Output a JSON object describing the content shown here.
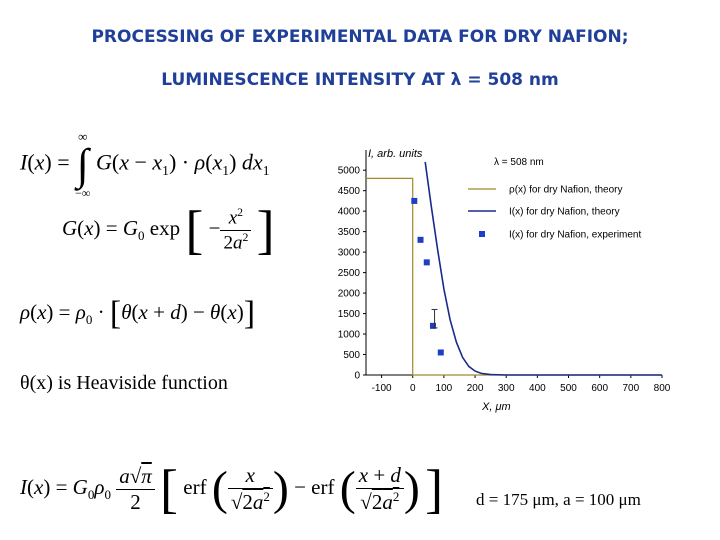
{
  "title_line1": "PROCESSING OF EXPERIMENTAL DATA FOR DRY NAFION;",
  "title_line2": "LUMINESCENCE INTENSITY AT λ = 508 nm",
  "heaviside_note": "θ(x) is Heaviside function",
  "params_note": "d = 175 μm, a = 100 μm",
  "colors": {
    "title": "#1f3f99",
    "theory_rho": "#a08a2a",
    "theory_I": "#1a2a8a",
    "experiment": "#1e3ec8"
  },
  "chart_data": {
    "type": "line",
    "ylabel": "I, arb. units",
    "xlabel": "X, μm",
    "annotation": "λ = 508 nm",
    "xlim": [
      -150,
      800
    ],
    "ylim": [
      0,
      5200
    ],
    "x_ticks": [
      "-100",
      "0",
      "100",
      "200",
      "300",
      "400",
      "500",
      "600",
      "700",
      "800"
    ],
    "y_ticks": [
      "0",
      "500",
      "1000",
      "1500",
      "2000",
      "2500",
      "3000",
      "3500",
      "4000",
      "4500",
      "5000"
    ],
    "legend": [
      "ρ(x) for dry Nafion, theory",
      "I(x) for dry Nafion, theory",
      "I(x) for dry Nafion, experiment"
    ],
    "series": [
      {
        "name": "ρ(x) for dry Nafion, theory",
        "style": "line",
        "x": [
          -150,
          0,
          0,
          800
        ],
        "y": [
          4800,
          4800,
          0,
          0
        ]
      },
      {
        "name": "I(x) for dry Nafion, theory",
        "style": "line",
        "x": [
          40,
          60,
          80,
          100,
          120,
          140,
          160,
          180,
          200,
          220,
          250,
          300,
          400,
          500,
          600,
          700,
          800
        ],
        "y": [
          5200,
          4100,
          3050,
          2100,
          1350,
          800,
          430,
          210,
          95,
          40,
          10,
          0,
          0,
          0,
          0,
          0,
          0
        ]
      },
      {
        "name": "I(x) for dry Nafion, experiment",
        "style": "markers",
        "x": [
          5,
          25,
          45,
          65,
          90
        ],
        "y": [
          4250,
          3300,
          2750,
          1200,
          550
        ]
      }
    ],
    "error_bar": {
      "x": 70,
      "y": 1300,
      "low": 1150,
      "high": 1600
    }
  }
}
